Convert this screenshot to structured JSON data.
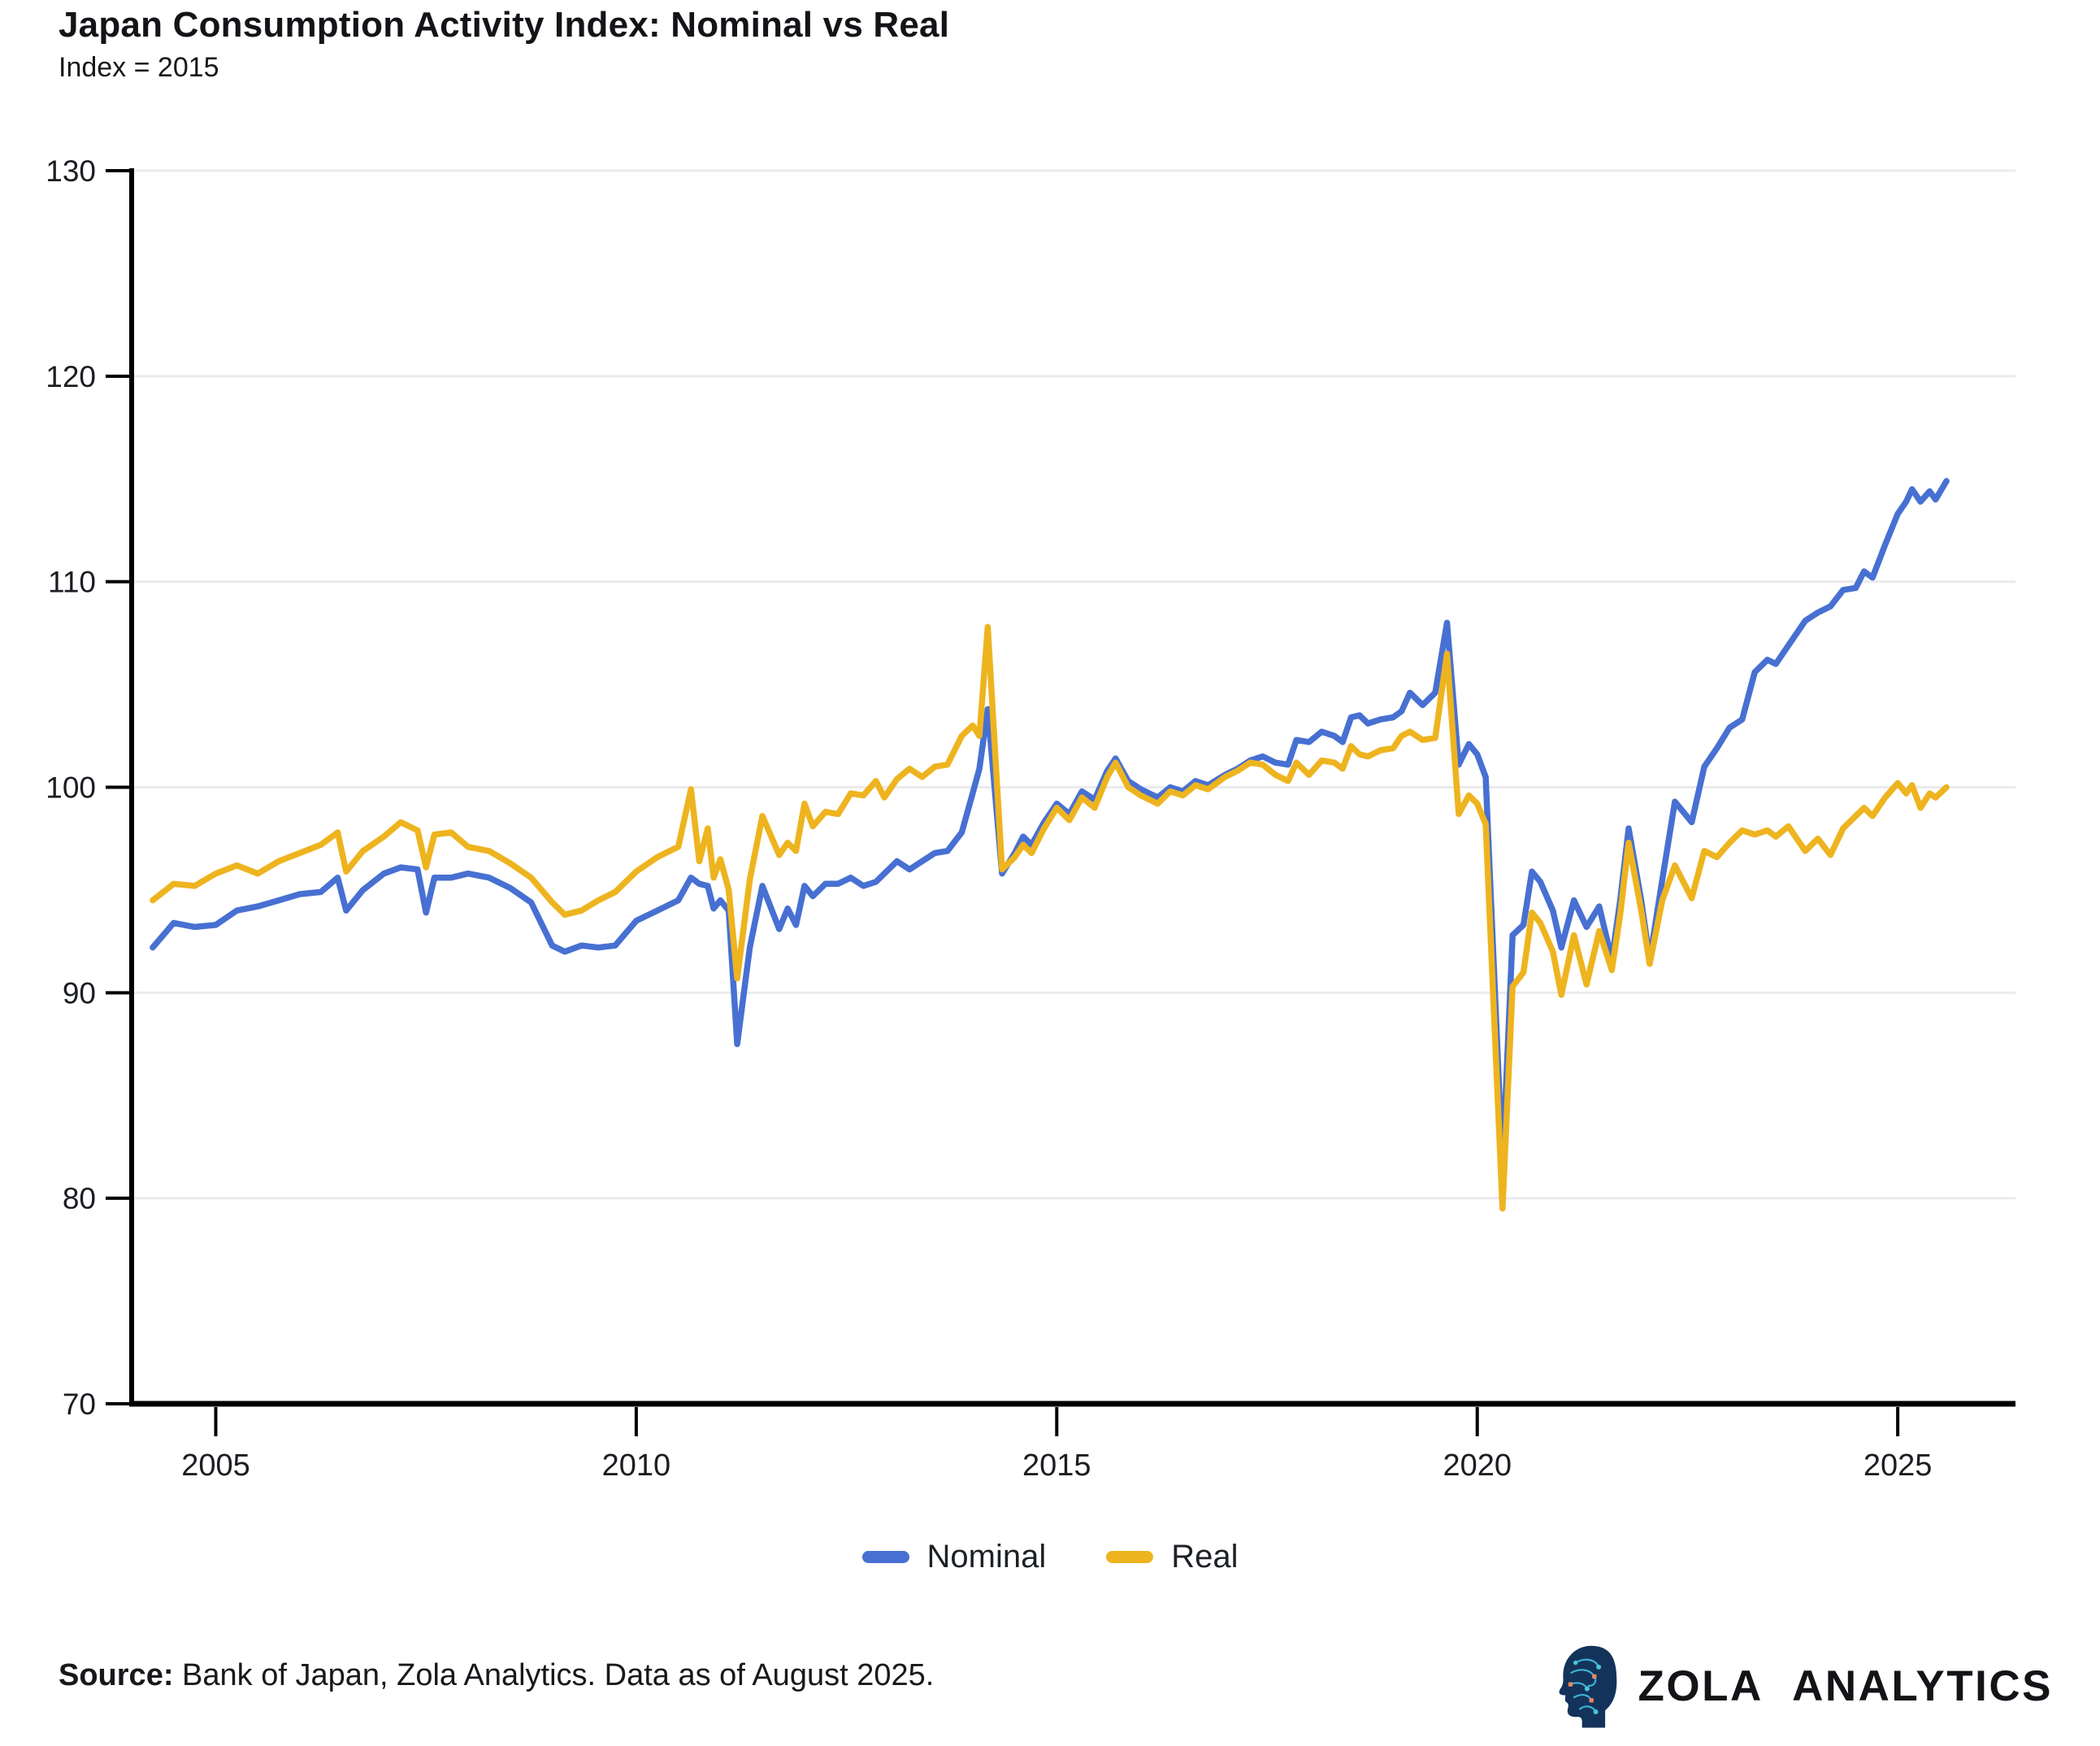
{
  "title": "Japan Consumption Activity Index: Nominal vs Real",
  "subtitle": "Index = 2015",
  "legend": [
    {
      "label": "Nominal",
      "color": "#4770d2"
    },
    {
      "label": "Real",
      "color": "#eeb41f"
    }
  ],
  "source": {
    "label": "Source:",
    "text": " Bank of Japan, Zola Analytics. Data as of August 2025."
  },
  "logo": {
    "text": "ZOLA ANALYTICS",
    "icon": "circuit-head-icon",
    "icon_color": "#14335a"
  },
  "colors": {
    "axis": "#000000",
    "grid": "#ebebee",
    "text": "#1a1d21"
  },
  "chart_data": {
    "type": "line",
    "title": "Japan Consumption Activity Index: Nominal vs Real",
    "subtitle": "Index = 2015",
    "xlabel": "",
    "ylabel": "",
    "xlim": [
      2004.0,
      2026.4
    ],
    "ylim": [
      70,
      130
    ],
    "xticks": [
      2005,
      2010,
      2015,
      2020,
      2025
    ],
    "yticks": [
      70,
      80,
      90,
      100,
      110,
      120,
      130
    ],
    "grid": "horizontal",
    "legend_position": "bottom",
    "x": [
      2004.25,
      2004.5,
      2004.75,
      2005.0,
      2005.25,
      2005.5,
      2005.75,
      2006.0,
      2006.25,
      2006.45,
      2006.55,
      2006.75,
      2007.0,
      2007.2,
      2007.4,
      2007.5,
      2007.6,
      2007.8,
      2008.0,
      2008.25,
      2008.5,
      2008.75,
      2009.0,
      2009.15,
      2009.35,
      2009.55,
      2009.75,
      2010.0,
      2010.25,
      2010.5,
      2010.65,
      2010.75,
      2010.85,
      2010.92,
      2011.0,
      2011.1,
      2011.2,
      2011.35,
      2011.5,
      2011.7,
      2011.8,
      2011.9,
      2012.0,
      2012.1,
      2012.25,
      2012.4,
      2012.55,
      2012.7,
      2012.85,
      2012.95,
      2013.1,
      2013.25,
      2013.4,
      2013.55,
      2013.7,
      2013.87,
      2014.0,
      2014.08,
      2014.18,
      2014.35,
      2014.5,
      2014.6,
      2014.7,
      2014.85,
      2015.0,
      2015.15,
      2015.3,
      2015.45,
      2015.6,
      2015.7,
      2015.85,
      2016.0,
      2016.2,
      2016.35,
      2016.5,
      2016.65,
      2016.8,
      2017.0,
      2017.15,
      2017.3,
      2017.45,
      2017.6,
      2017.75,
      2017.85,
      2018.0,
      2018.15,
      2018.3,
      2018.4,
      2018.5,
      2018.6,
      2018.7,
      2018.85,
      2019.0,
      2019.1,
      2019.2,
      2019.35,
      2019.5,
      2019.64,
      2019.78,
      2019.9,
      2020.0,
      2020.1,
      2020.3,
      2020.42,
      2020.55,
      2020.65,
      2020.75,
      2020.9,
      2021.0,
      2021.15,
      2021.3,
      2021.45,
      2021.6,
      2021.7,
      2021.8,
      2021.95,
      2022.05,
      2022.2,
      2022.35,
      2022.55,
      2022.7,
      2022.85,
      2023.0,
      2023.15,
      2023.3,
      2023.45,
      2023.55,
      2023.7,
      2023.9,
      2024.05,
      2024.2,
      2024.35,
      2024.5,
      2024.6,
      2024.7,
      2024.85,
      2025.0,
      2025.1,
      2025.17,
      2025.27,
      2025.38,
      2025.45,
      2025.58
    ],
    "series": [
      {
        "name": "Nominal",
        "color": "#4770d2",
        "values": [
          92.2,
          93.4,
          93.2,
          93.3,
          94.0,
          94.2,
          94.5,
          94.8,
          94.9,
          95.6,
          94.0,
          95.0,
          95.8,
          96.1,
          96.0,
          93.9,
          95.6,
          95.6,
          95.8,
          95.6,
          95.1,
          94.4,
          92.3,
          92.0,
          92.3,
          92.2,
          92.3,
          93.5,
          94.0,
          94.5,
          95.6,
          95.3,
          95.2,
          94.1,
          94.5,
          94.0,
          87.5,
          92.2,
          95.2,
          93.1,
          94.1,
          93.3,
          95.2,
          94.7,
          95.3,
          95.3,
          95.6,
          95.2,
          95.4,
          95.8,
          96.4,
          96.0,
          96.4,
          96.8,
          96.9,
          97.8,
          99.7,
          100.9,
          103.8,
          95.8,
          96.8,
          97.6,
          97.2,
          98.3,
          99.2,
          98.7,
          99.8,
          99.4,
          100.8,
          101.4,
          100.3,
          99.9,
          99.5,
          100.0,
          99.8,
          100.3,
          100.1,
          100.6,
          100.9,
          101.3,
          101.5,
          101.2,
          101.1,
          102.3,
          102.2,
          102.7,
          102.5,
          102.2,
          103.4,
          103.5,
          103.1,
          103.3,
          103.4,
          103.7,
          104.6,
          104.0,
          104.6,
          108.0,
          101.1,
          102.1,
          101.6,
          100.5,
          81.5,
          92.8,
          93.3,
          95.9,
          95.4,
          94.0,
          92.2,
          94.5,
          93.2,
          94.2,
          91.6,
          94.5,
          98.0,
          94.5,
          91.6,
          95.5,
          99.3,
          98.3,
          101.0,
          101.9,
          102.9,
          103.3,
          105.6,
          106.2,
          106.0,
          106.9,
          108.1,
          108.5,
          108.8,
          109.6,
          109.7,
          110.5,
          110.2,
          111.8,
          113.3,
          113.9,
          114.5,
          113.9,
          114.4,
          114.0,
          114.9
        ]
      },
      {
        "name": "Real",
        "color": "#eeb41f",
        "values": [
          94.5,
          95.3,
          95.2,
          95.8,
          96.2,
          95.8,
          96.4,
          96.8,
          97.2,
          97.8,
          95.9,
          96.9,
          97.6,
          98.3,
          97.9,
          96.1,
          97.7,
          97.8,
          97.1,
          96.9,
          96.3,
          95.6,
          94.4,
          93.8,
          94.0,
          94.5,
          94.9,
          95.9,
          96.6,
          97.1,
          99.9,
          96.4,
          98.0,
          95.6,
          96.5,
          95.0,
          90.7,
          95.5,
          98.6,
          96.7,
          97.3,
          96.9,
          99.2,
          98.1,
          98.8,
          98.7,
          99.7,
          99.6,
          100.3,
          99.5,
          100.4,
          100.9,
          100.5,
          101.0,
          101.1,
          102.5,
          103.0,
          102.5,
          107.8,
          96.0,
          96.6,
          97.2,
          96.8,
          98.0,
          99.0,
          98.4,
          99.5,
          99.0,
          100.5,
          101.2,
          100.0,
          99.6,
          99.2,
          99.8,
          99.6,
          100.1,
          99.9,
          100.5,
          100.8,
          101.2,
          101.1,
          100.6,
          100.3,
          101.2,
          100.6,
          101.3,
          101.2,
          100.9,
          102.0,
          101.6,
          101.5,
          101.8,
          101.9,
          102.5,
          102.7,
          102.3,
          102.4,
          106.5,
          98.7,
          99.6,
          99.2,
          98.2,
          79.5,
          90.3,
          91.0,
          93.9,
          93.4,
          92.0,
          89.9,
          92.8,
          90.4,
          93.0,
          91.1,
          93.8,
          97.3,
          94.0,
          91.4,
          94.5,
          96.2,
          94.6,
          96.9,
          96.6,
          97.3,
          97.9,
          97.7,
          97.9,
          97.6,
          98.1,
          96.9,
          97.5,
          96.7,
          98.0,
          98.6,
          99.0,
          98.6,
          99.5,
          100.2,
          99.7,
          100.1,
          99.0,
          99.7,
          99.5,
          100.0
        ]
      }
    ]
  }
}
